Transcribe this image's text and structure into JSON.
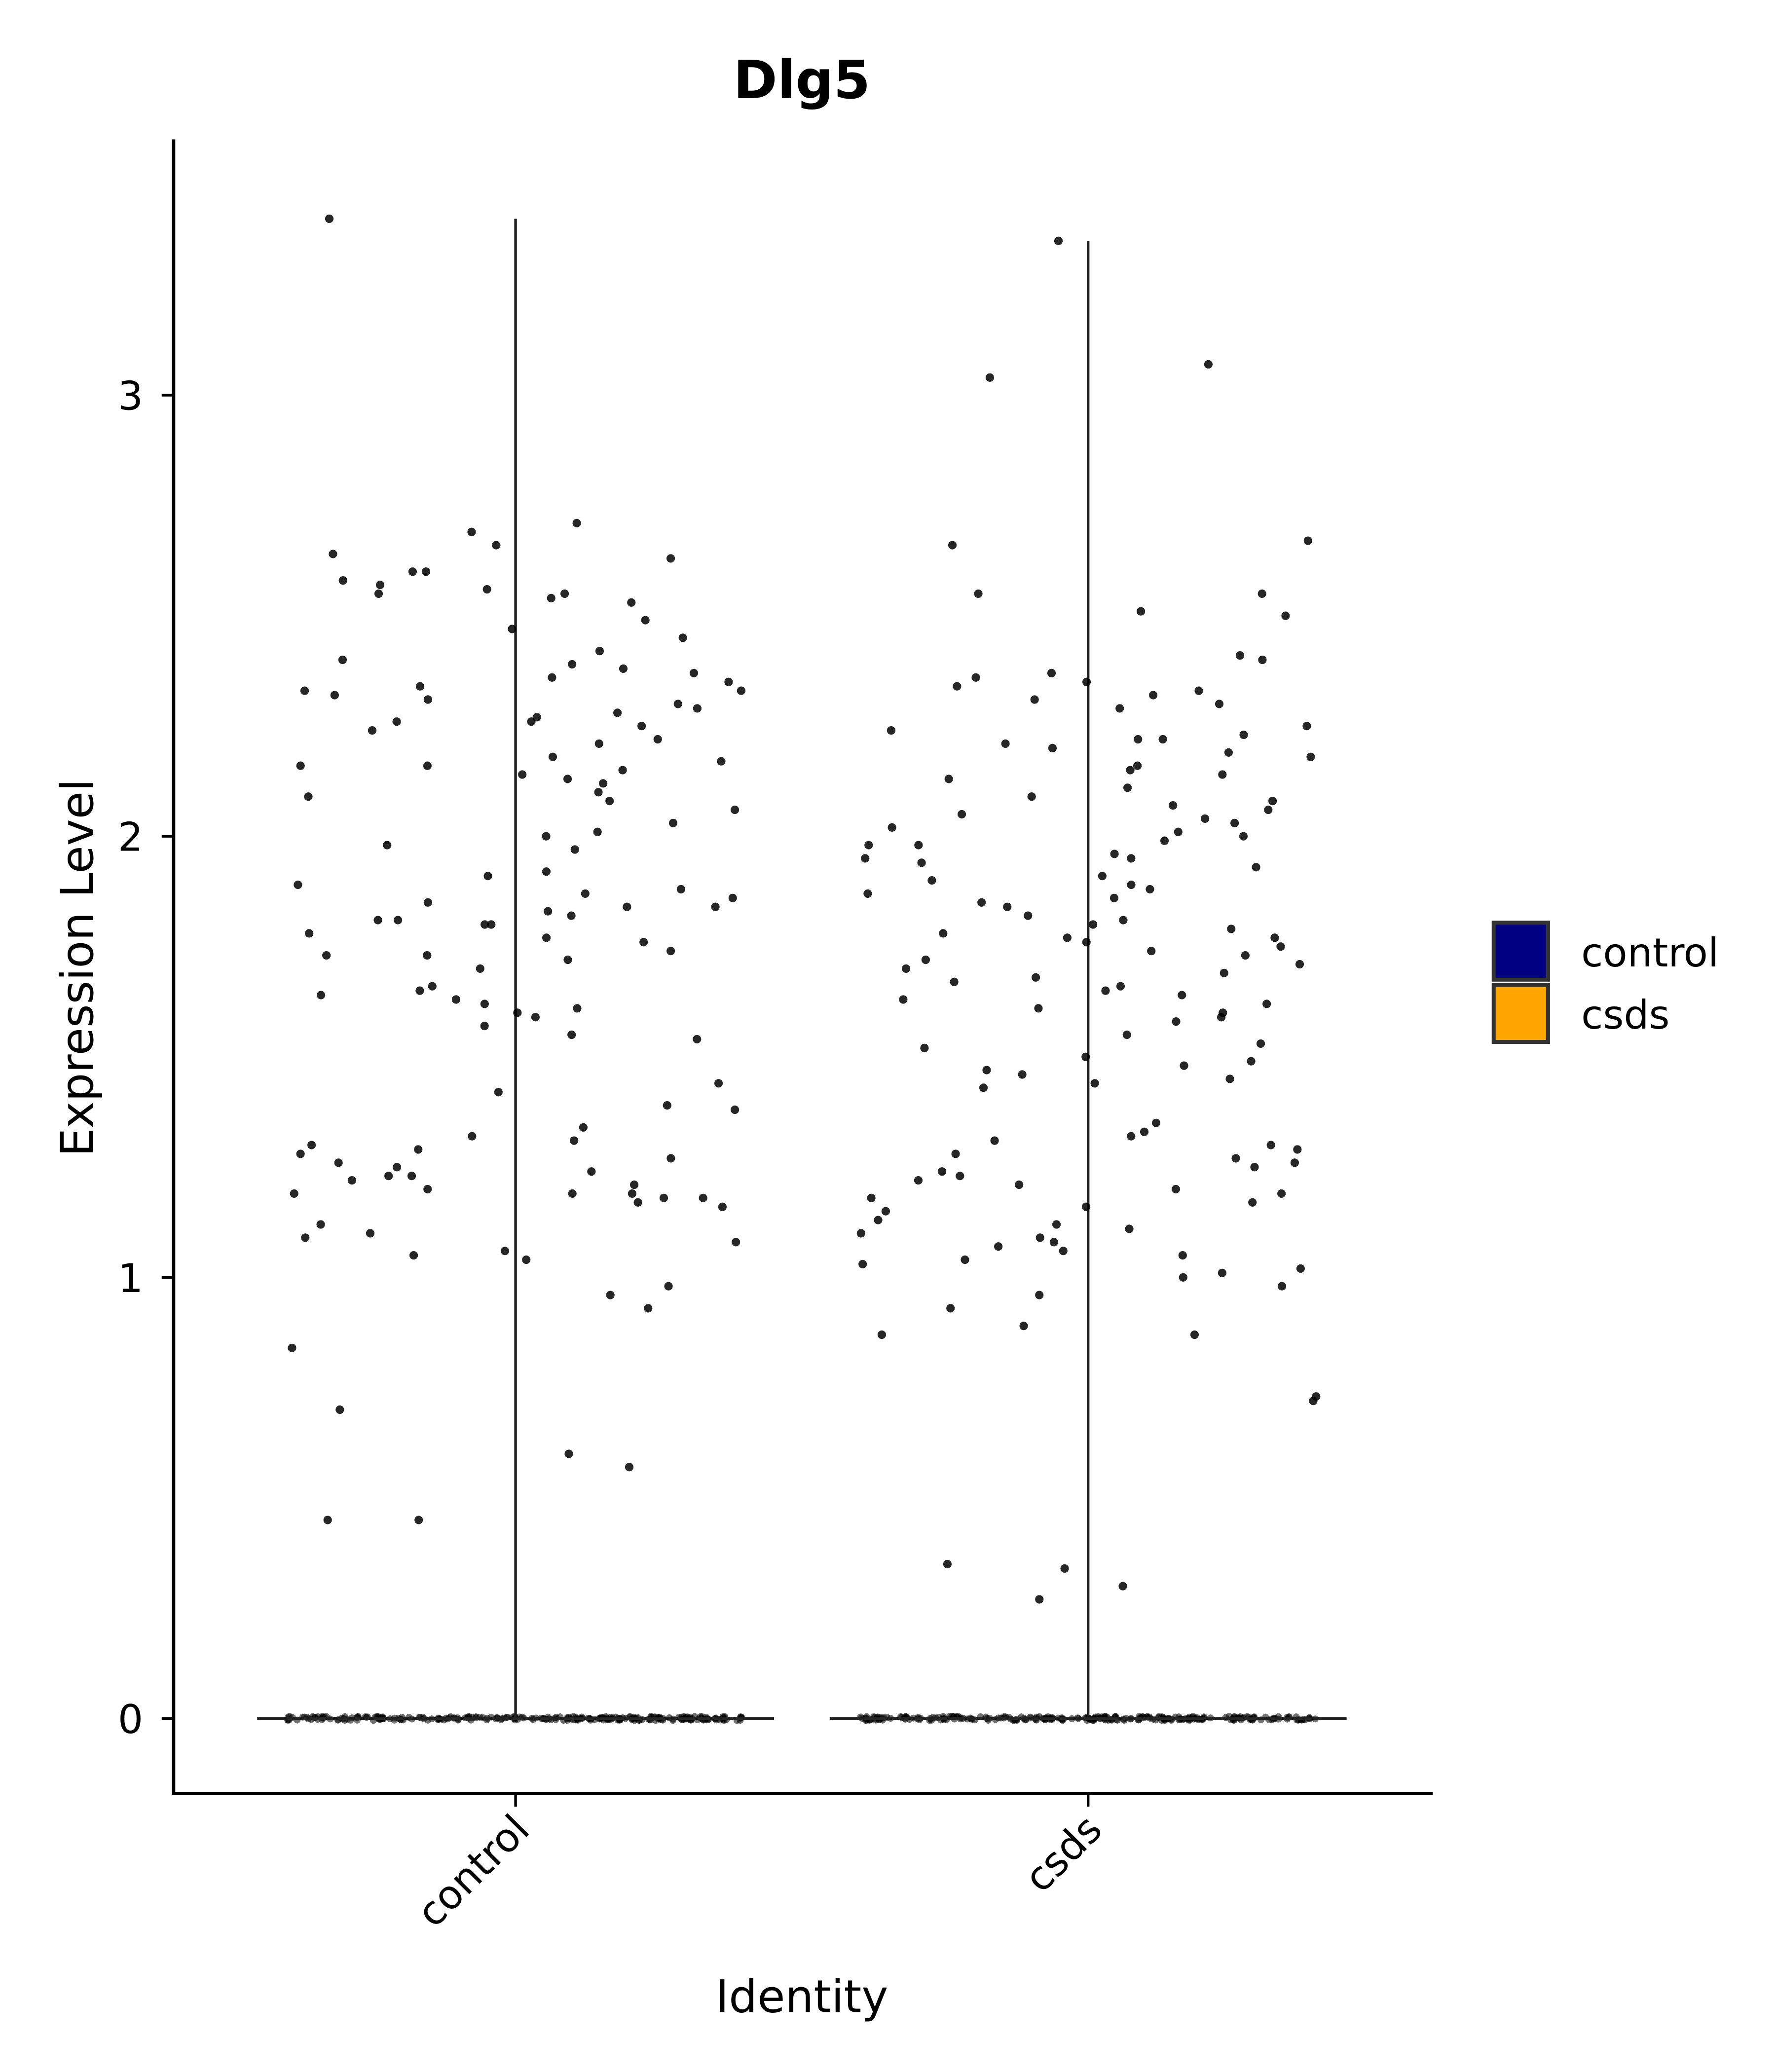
{
  "chart_data": {
    "type": "violin",
    "title": "Dlg5",
    "xlabel": "Identity",
    "ylabel": "Expression Level",
    "categories": [
      "control",
      "csds"
    ],
    "yticks": [
      0,
      1,
      2,
      3
    ],
    "ylim": [
      -0.17,
      3.58
    ],
    "grid": false,
    "legend": {
      "placement": "right",
      "entries": [
        {
          "label": "control",
          "color": "#000080"
        },
        {
          "label": "csds",
          "color": "#FFA500"
        }
      ]
    },
    "violin_max": {
      "control": 3.4,
      "csds": 3.35
    },
    "zero_band": true,
    "series": [
      {
        "name": "control",
        "nonzero_values": [
          3.4,
          2.71,
          2.69,
          2.66,
          2.64,
          2.63,
          2.6,
          2.6,
          2.58,
          2.57,
          2.56,
          2.55,
          2.55,
          2.54,
          2.53,
          2.49,
          2.47,
          2.45,
          2.42,
          2.4,
          2.39,
          2.38,
          2.37,
          2.36,
          2.35,
          2.34,
          2.33,
          2.33,
          2.32,
          2.31,
          2.3,
          2.29,
          2.28,
          2.27,
          2.26,
          2.26,
          2.25,
          2.24,
          2.22,
          2.21,
          2.18,
          2.17,
          2.16,
          2.16,
          2.15,
          2.14,
          2.13,
          2.12,
          2.1,
          2.09,
          2.08,
          2.06,
          2.03,
          2.01,
          2.0,
          1.98,
          1.97,
          1.92,
          1.91,
          1.89,
          1.88,
          1.87,
          1.86,
          1.85,
          1.84,
          1.84,
          1.83,
          1.82,
          1.81,
          1.81,
          1.8,
          1.8,
          1.78,
          1.77,
          1.76,
          1.74,
          1.73,
          1.73,
          1.72,
          1.7,
          1.66,
          1.65,
          1.64,
          1.63,
          1.62,
          1.61,
          1.6,
          1.59,
          1.57,
          1.55,
          1.54,
          1.44,
          1.42,
          1.39,
          1.38,
          1.34,
          1.32,
          1.31,
          1.3,
          1.29,
          1.28,
          1.27,
          1.26,
          1.25,
          1.24,
          1.23,
          1.23,
          1.22,
          1.21,
          1.2,
          1.19,
          1.19,
          1.19,
          1.18,
          1.18,
          1.17,
          1.16,
          1.12,
          1.1,
          1.09,
          1.08,
          1.06,
          1.05,
          1.04,
          0.98,
          0.96,
          0.93,
          0.84,
          0.7,
          0.6,
          0.57,
          0.45,
          0.45
        ]
      },
      {
        "name": "csds",
        "nonzero_values": [
          3.35,
          3.07,
          3.04,
          2.67,
          2.66,
          2.55,
          2.55,
          2.51,
          2.5,
          2.41,
          2.4,
          2.37,
          2.36,
          2.35,
          2.34,
          2.33,
          2.32,
          2.31,
          2.3,
          2.29,
          2.25,
          2.24,
          2.23,
          2.22,
          2.22,
          2.21,
          2.2,
          2.19,
          2.18,
          2.16,
          2.15,
          2.14,
          2.13,
          2.11,
          2.09,
          2.08,
          2.07,
          2.06,
          2.05,
          2.04,
          2.03,
          2.02,
          2.01,
          2.0,
          1.99,
          1.98,
          1.98,
          1.96,
          1.95,
          1.95,
          1.94,
          1.93,
          1.91,
          1.9,
          1.89,
          1.88,
          1.87,
          1.86,
          1.85,
          1.84,
          1.82,
          1.81,
          1.8,
          1.79,
          1.78,
          1.77,
          1.77,
          1.76,
          1.75,
          1.74,
          1.73,
          1.72,
          1.71,
          1.7,
          1.69,
          1.68,
          1.67,
          1.66,
          1.65,
          1.64,
          1.63,
          1.62,
          1.61,
          1.6,
          1.59,
          1.58,
          1.55,
          1.53,
          1.52,
          1.5,
          1.49,
          1.48,
          1.47,
          1.46,
          1.45,
          1.44,
          1.43,
          1.35,
          1.33,
          1.32,
          1.31,
          1.3,
          1.29,
          1.28,
          1.27,
          1.26,
          1.25,
          1.24,
          1.23,
          1.22,
          1.21,
          1.2,
          1.19,
          1.18,
          1.17,
          1.16,
          1.15,
          1.13,
          1.12,
          1.11,
          1.1,
          1.09,
          1.08,
          1.07,
          1.06,
          1.05,
          1.04,
          1.03,
          1.02,
          1.01,
          1.0,
          0.98,
          0.96,
          0.93,
          0.89,
          0.87,
          0.87,
          0.73,
          0.72,
          0.35,
          0.34,
          0.3,
          0.27
        ]
      }
    ]
  }
}
